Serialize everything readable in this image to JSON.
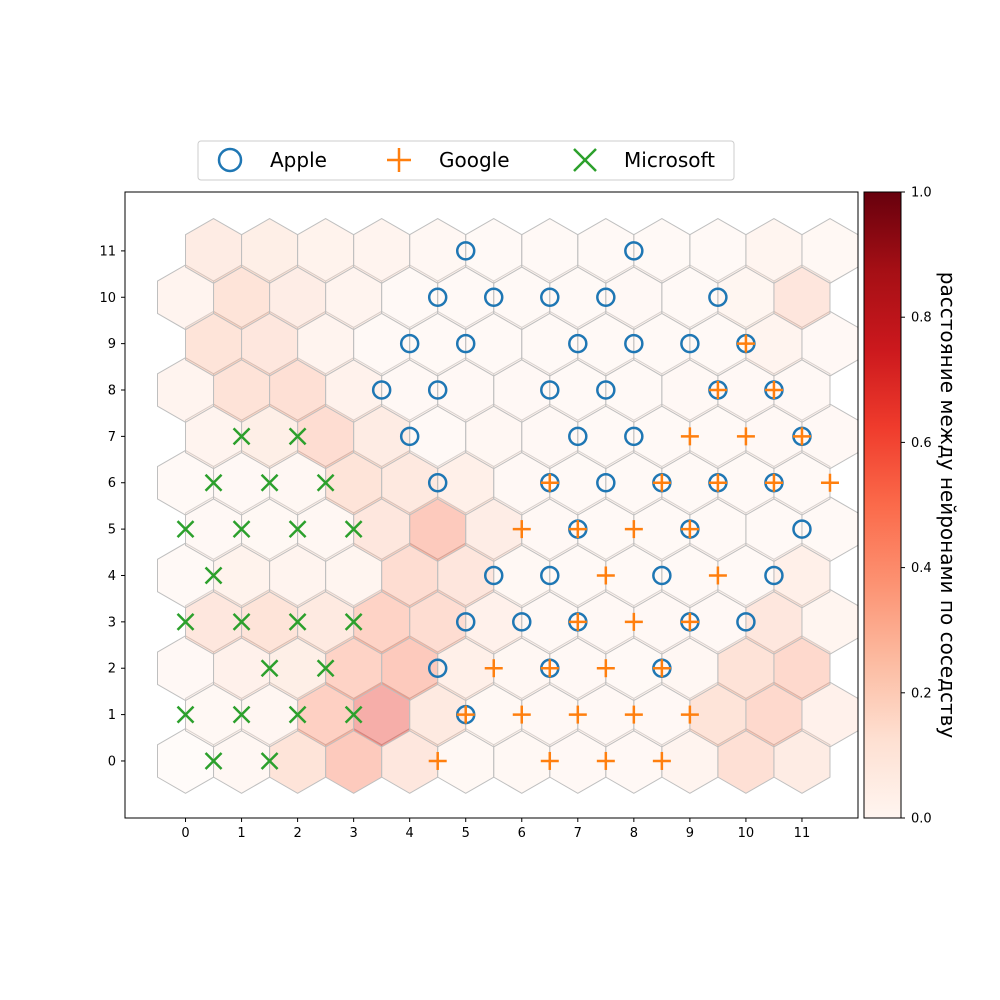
{
  "chart_data": {
    "type": "heatmap",
    "subtype": "hexagonal self-organizing map (U-matrix) with markers",
    "title": "",
    "xlabel": "",
    "ylabel": "",
    "x_ticks": [
      0,
      1,
      2,
      3,
      4,
      5,
      6,
      7,
      8,
      9,
      10,
      11
    ],
    "y_ticks": [
      0,
      1,
      2,
      3,
      4,
      5,
      6,
      7,
      8,
      9,
      10,
      11
    ],
    "xlim": [
      -1.08,
      12.0
    ],
    "ylim": [
      -1.23,
      12.27
    ],
    "grid": false,
    "legend": {
      "placement": "top-center",
      "entries": [
        {
          "label": "Apple",
          "marker": "circle",
          "color": "#1f77b4"
        },
        {
          "label": "Google",
          "marker": "plus",
          "color": "#ff7f0e"
        },
        {
          "label": "Microsoft",
          "marker": "x",
          "color": "#2ca02c"
        }
      ]
    },
    "colorbar": {
      "label": "расстояние между нейронами по соседству",
      "colormap": "Reds",
      "range": [
        0,
        1
      ],
      "ticks": [
        "0.0",
        "0.2",
        "0.4",
        "0.6",
        "0.8",
        "1.0"
      ],
      "cell_alpha": 0.4
    },
    "cell_edge_color": "#bfbfbf",
    "odd_row_x_offset": 0.5,
    "distance_grid": [
      [
        0.0,
        0.06,
        0.25,
        0.45,
        0.22,
        0.05,
        0.05,
        0.04,
        0.04,
        0.1,
        0.28,
        0.18
      ],
      [
        0.05,
        0.07,
        0.4,
        0.65,
        0.2,
        0.05,
        0.04,
        0.04,
        0.04,
        0.25,
        0.33,
        0.14
      ],
      [
        0.04,
        0.14,
        0.16,
        0.38,
        0.45,
        0.15,
        0.06,
        0.04,
        0.03,
        0.06,
        0.26,
        0.33
      ],
      [
        0.22,
        0.25,
        0.2,
        0.38,
        0.3,
        0.14,
        0.04,
        0.04,
        0.04,
        0.04,
        0.22,
        0.09
      ],
      [
        0.03,
        0.12,
        0.11,
        0.09,
        0.3,
        0.23,
        0.05,
        0.03,
        0.03,
        0.03,
        0.03,
        0.15
      ],
      [
        0.04,
        0.05,
        0.06,
        0.22,
        0.45,
        0.17,
        0.04,
        0.03,
        0.03,
        0.03,
        0.03,
        0.03
      ],
      [
        0.03,
        0.04,
        0.06,
        0.25,
        0.21,
        0.15,
        0.04,
        0.03,
        0.03,
        0.03,
        0.03,
        0.03
      ],
      [
        0.1,
        0.16,
        0.3,
        0.18,
        0.03,
        0.06,
        0.04,
        0.03,
        0.03,
        0.03,
        0.04,
        0.04
      ],
      [
        0.1,
        0.26,
        0.28,
        0.13,
        0.04,
        0.04,
        0.04,
        0.03,
        0.03,
        0.04,
        0.04,
        0.04
      ],
      [
        0.25,
        0.22,
        0.1,
        0.03,
        0.03,
        0.03,
        0.03,
        0.03,
        0.03,
        0.03,
        0.1,
        0.04
      ],
      [
        0.1,
        0.25,
        0.17,
        0.11,
        0.03,
        0.03,
        0.03,
        0.03,
        0.04,
        0.03,
        0.08,
        0.23
      ],
      [
        0.18,
        0.16,
        0.12,
        0.1,
        0.06,
        0.03,
        0.03,
        0.03,
        0.03,
        0.03,
        0.09,
        0.05
      ]
    ],
    "series": [
      {
        "name": "Apple",
        "marker": "circle",
        "points": [
          [
            5,
            11
          ],
          [
            8,
            11
          ],
          [
            4.5,
            10
          ],
          [
            5.5,
            10
          ],
          [
            6.5,
            10
          ],
          [
            7.5,
            10
          ],
          [
            9.5,
            10
          ],
          [
            4,
            9
          ],
          [
            5,
            9
          ],
          [
            7,
            9
          ],
          [
            8,
            9
          ],
          [
            9,
            9
          ],
          [
            10,
            9
          ],
          [
            3.5,
            8
          ],
          [
            4.5,
            8
          ],
          [
            6.5,
            8
          ],
          [
            7.5,
            8
          ],
          [
            9.5,
            8
          ],
          [
            10.5,
            8
          ],
          [
            4,
            7
          ],
          [
            7,
            7
          ],
          [
            8,
            7
          ],
          [
            11,
            7
          ],
          [
            4.5,
            6
          ],
          [
            6.5,
            6
          ],
          [
            7.5,
            6
          ],
          [
            8.5,
            6
          ],
          [
            9.5,
            6
          ],
          [
            10.5,
            6
          ],
          [
            7,
            5
          ],
          [
            9,
            5
          ],
          [
            11,
            5
          ],
          [
            5.5,
            4
          ],
          [
            6.5,
            4
          ],
          [
            8.5,
            4
          ],
          [
            10.5,
            4
          ],
          [
            5,
            3
          ],
          [
            6,
            3
          ],
          [
            7,
            3
          ],
          [
            9,
            3
          ],
          [
            10,
            3
          ],
          [
            4.5,
            2
          ],
          [
            6.5,
            2
          ],
          [
            8.5,
            2
          ],
          [
            5,
            1
          ]
        ]
      },
      {
        "name": "Google",
        "marker": "plus",
        "points": [
          [
            10,
            9
          ],
          [
            9.5,
            8
          ],
          [
            10.5,
            8
          ],
          [
            9,
            7
          ],
          [
            10,
            7
          ],
          [
            11,
            7
          ],
          [
            6.5,
            6
          ],
          [
            8.5,
            6
          ],
          [
            9.5,
            6
          ],
          [
            10.5,
            6
          ],
          [
            11.5,
            6
          ],
          [
            6,
            5
          ],
          [
            7,
            5
          ],
          [
            8,
            5
          ],
          [
            9,
            5
          ],
          [
            7.5,
            4
          ],
          [
            9.5,
            4
          ],
          [
            7,
            3
          ],
          [
            8,
            3
          ],
          [
            9,
            3
          ],
          [
            5.5,
            2
          ],
          [
            6.5,
            2
          ],
          [
            7.5,
            2
          ],
          [
            8.5,
            2
          ],
          [
            5,
            1
          ],
          [
            6,
            1
          ],
          [
            7,
            1
          ],
          [
            8,
            1
          ],
          [
            9,
            1
          ],
          [
            4.5,
            0
          ],
          [
            6.5,
            0
          ],
          [
            7.5,
            0
          ],
          [
            8.5,
            0
          ]
        ]
      },
      {
        "name": "Microsoft",
        "marker": "x",
        "points": [
          [
            1,
            7
          ],
          [
            2,
            7
          ],
          [
            0.5,
            6
          ],
          [
            1.5,
            6
          ],
          [
            2.5,
            6
          ],
          [
            0,
            5
          ],
          [
            1,
            5
          ],
          [
            2,
            5
          ],
          [
            3,
            5
          ],
          [
            0.5,
            4
          ],
          [
            0,
            3
          ],
          [
            1,
            3
          ],
          [
            2,
            3
          ],
          [
            3,
            3
          ],
          [
            1.5,
            2
          ],
          [
            2.5,
            2
          ],
          [
            0,
            1
          ],
          [
            1,
            1
          ],
          [
            2,
            1
          ],
          [
            3,
            1
          ],
          [
            0.5,
            0
          ],
          [
            1.5,
            0
          ]
        ]
      }
    ]
  }
}
